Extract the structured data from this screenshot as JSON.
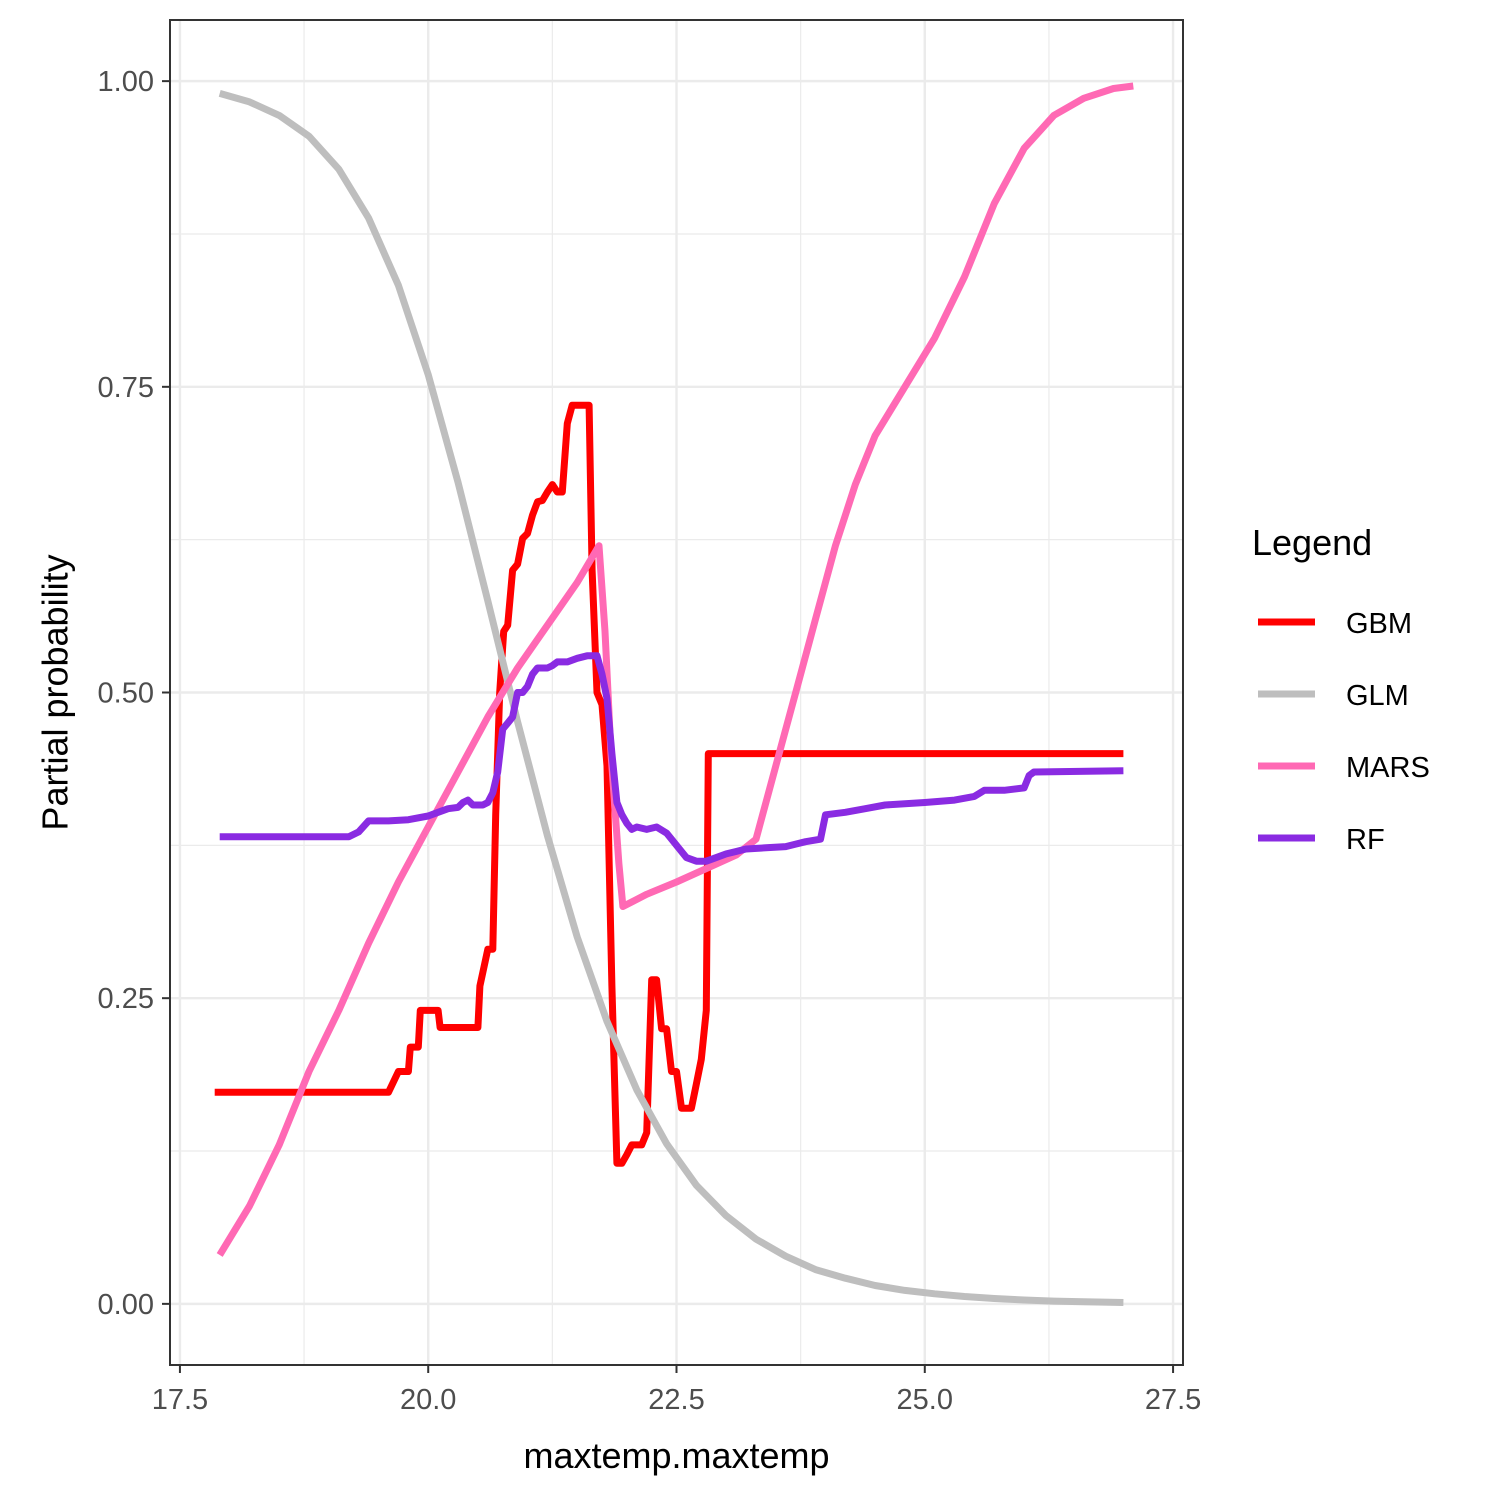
{
  "chart_data": {
    "type": "line",
    "title": "",
    "xlabel": "maxtemp.maxtemp",
    "ylabel": "Partial probability",
    "xlim": [
      17.4,
      27.6
    ],
    "ylim": [
      -0.05,
      1.05
    ],
    "x_ticks": [
      17.5,
      20.0,
      22.5,
      25.0,
      27.5
    ],
    "x_tick_labels": [
      "17.5",
      "20.0",
      "22.5",
      "25.0",
      "27.5"
    ],
    "y_ticks": [
      0.0,
      0.25,
      0.5,
      0.75,
      1.0
    ],
    "y_tick_labels": [
      "0.00",
      "0.25",
      "0.50",
      "0.75",
      "1.00"
    ],
    "grid": true,
    "legend": {
      "title": "Legend",
      "position": "right"
    },
    "series": [
      {
        "name": "GBM",
        "color": "#ff0000",
        "points": [
          [
            17.85,
            0.173
          ],
          [
            19.6,
            0.173
          ],
          [
            19.7,
            0.19
          ],
          [
            19.8,
            0.19
          ],
          [
            19.82,
            0.21
          ],
          [
            19.9,
            0.21
          ],
          [
            19.92,
            0.24
          ],
          [
            20.1,
            0.24
          ],
          [
            20.12,
            0.226
          ],
          [
            20.5,
            0.226
          ],
          [
            20.52,
            0.26
          ],
          [
            20.6,
            0.29
          ],
          [
            20.65,
            0.29
          ],
          [
            20.68,
            0.4
          ],
          [
            20.72,
            0.5
          ],
          [
            20.76,
            0.55
          ],
          [
            20.8,
            0.555
          ],
          [
            20.85,
            0.6
          ],
          [
            20.9,
            0.605
          ],
          [
            20.95,
            0.626
          ],
          [
            21.0,
            0.63
          ],
          [
            21.05,
            0.645
          ],
          [
            21.1,
            0.656
          ],
          [
            21.15,
            0.657
          ],
          [
            21.2,
            0.664
          ],
          [
            21.25,
            0.67
          ],
          [
            21.3,
            0.664
          ],
          [
            21.35,
            0.664
          ],
          [
            21.4,
            0.72
          ],
          [
            21.45,
            0.735
          ],
          [
            21.62,
            0.735
          ],
          [
            21.65,
            0.6
          ],
          [
            21.7,
            0.5
          ],
          [
            21.75,
            0.49
          ],
          [
            21.8,
            0.44
          ],
          [
            21.85,
            0.26
          ],
          [
            21.9,
            0.115
          ],
          [
            21.95,
            0.115
          ],
          [
            22.0,
            0.122
          ],
          [
            22.05,
            0.13
          ],
          [
            22.15,
            0.13
          ],
          [
            22.2,
            0.14
          ],
          [
            22.25,
            0.265
          ],
          [
            22.3,
            0.265
          ],
          [
            22.35,
            0.225
          ],
          [
            22.4,
            0.225
          ],
          [
            22.45,
            0.19
          ],
          [
            22.5,
            0.19
          ],
          [
            22.55,
            0.16
          ],
          [
            22.6,
            0.16
          ],
          [
            22.65,
            0.16
          ],
          [
            22.7,
            0.18
          ],
          [
            22.75,
            0.2
          ],
          [
            22.8,
            0.24
          ],
          [
            22.82,
            0.45
          ],
          [
            27.0,
            0.45
          ]
        ]
      },
      {
        "name": "GLM",
        "color": "#bebebe",
        "points": [
          [
            17.9,
            0.99
          ],
          [
            18.2,
            0.983
          ],
          [
            18.5,
            0.972
          ],
          [
            18.8,
            0.955
          ],
          [
            19.1,
            0.928
          ],
          [
            19.4,
            0.888
          ],
          [
            19.7,
            0.833
          ],
          [
            20.0,
            0.76
          ],
          [
            20.3,
            0.672
          ],
          [
            20.6,
            0.575
          ],
          [
            20.9,
            0.476
          ],
          [
            21.2,
            0.383
          ],
          [
            21.5,
            0.3
          ],
          [
            21.8,
            0.231
          ],
          [
            22.1,
            0.175
          ],
          [
            22.4,
            0.131
          ],
          [
            22.7,
            0.097
          ],
          [
            23.0,
            0.072
          ],
          [
            23.3,
            0.053
          ],
          [
            23.6,
            0.039
          ],
          [
            23.9,
            0.028
          ],
          [
            24.2,
            0.021
          ],
          [
            24.5,
            0.015
          ],
          [
            24.8,
            0.011
          ],
          [
            25.1,
            0.0082
          ],
          [
            25.4,
            0.006
          ],
          [
            25.7,
            0.0044
          ],
          [
            26.0,
            0.0032
          ],
          [
            26.3,
            0.0023
          ],
          [
            26.6,
            0.0017
          ],
          [
            27.0,
            0.0011
          ]
        ]
      },
      {
        "name": "MARS",
        "color": "#ff69b4",
        "points": [
          [
            17.9,
            0.04
          ],
          [
            18.2,
            0.08
          ],
          [
            18.5,
            0.13
          ],
          [
            18.8,
            0.19
          ],
          [
            19.1,
            0.24
          ],
          [
            19.4,
            0.295
          ],
          [
            19.7,
            0.345
          ],
          [
            20.0,
            0.39
          ],
          [
            20.3,
            0.435
          ],
          [
            20.6,
            0.48
          ],
          [
            20.9,
            0.52
          ],
          [
            21.2,
            0.555
          ],
          [
            21.5,
            0.59
          ],
          [
            21.72,
            0.62
          ],
          [
            21.78,
            0.55
          ],
          [
            21.84,
            0.45
          ],
          [
            21.92,
            0.36
          ],
          [
            21.96,
            0.325
          ],
          [
            22.2,
            0.335
          ],
          [
            22.5,
            0.345
          ],
          [
            22.8,
            0.356
          ],
          [
            23.1,
            0.367
          ],
          [
            23.3,
            0.38
          ],
          [
            23.5,
            0.44
          ],
          [
            23.7,
            0.5
          ],
          [
            23.9,
            0.56
          ],
          [
            24.1,
            0.62
          ],
          [
            24.3,
            0.67
          ],
          [
            24.5,
            0.71
          ],
          [
            24.8,
            0.75
          ],
          [
            25.1,
            0.79
          ],
          [
            25.4,
            0.84
          ],
          [
            25.7,
            0.9
          ],
          [
            26.0,
            0.945
          ],
          [
            26.3,
            0.972
          ],
          [
            26.6,
            0.986
          ],
          [
            26.9,
            0.994
          ],
          [
            27.1,
            0.996
          ]
        ]
      },
      {
        "name": "RF",
        "color": "#8a2be2",
        "points": [
          [
            17.9,
            0.382
          ],
          [
            19.2,
            0.382
          ],
          [
            19.3,
            0.386
          ],
          [
            19.4,
            0.395
          ],
          [
            19.6,
            0.395
          ],
          [
            19.8,
            0.396
          ],
          [
            20.0,
            0.399
          ],
          [
            20.1,
            0.402
          ],
          [
            20.2,
            0.405
          ],
          [
            20.3,
            0.406
          ],
          [
            20.35,
            0.41
          ],
          [
            20.4,
            0.412
          ],
          [
            20.45,
            0.408
          ],
          [
            20.5,
            0.408
          ],
          [
            20.55,
            0.408
          ],
          [
            20.6,
            0.41
          ],
          [
            20.65,
            0.418
          ],
          [
            20.7,
            0.435
          ],
          [
            20.75,
            0.47
          ],
          [
            20.8,
            0.475
          ],
          [
            20.85,
            0.48
          ],
          [
            20.9,
            0.5
          ],
          [
            20.95,
            0.5
          ],
          [
            21.0,
            0.505
          ],
          [
            21.05,
            0.515
          ],
          [
            21.1,
            0.52
          ],
          [
            21.2,
            0.52
          ],
          [
            21.25,
            0.522
          ],
          [
            21.3,
            0.525
          ],
          [
            21.4,
            0.525
          ],
          [
            21.5,
            0.528
          ],
          [
            21.6,
            0.53
          ],
          [
            21.7,
            0.53
          ],
          [
            21.75,
            0.515
          ],
          [
            21.8,
            0.495
          ],
          [
            21.85,
            0.45
          ],
          [
            21.9,
            0.41
          ],
          [
            21.95,
            0.4
          ],
          [
            22.0,
            0.393
          ],
          [
            22.05,
            0.388
          ],
          [
            22.1,
            0.39
          ],
          [
            22.2,
            0.388
          ],
          [
            22.3,
            0.39
          ],
          [
            22.4,
            0.385
          ],
          [
            22.5,
            0.375
          ],
          [
            22.6,
            0.365
          ],
          [
            22.7,
            0.362
          ],
          [
            22.8,
            0.362
          ],
          [
            22.9,
            0.365
          ],
          [
            23.0,
            0.368
          ],
          [
            23.1,
            0.37
          ],
          [
            23.2,
            0.372
          ],
          [
            23.4,
            0.373
          ],
          [
            23.6,
            0.374
          ],
          [
            23.7,
            0.376
          ],
          [
            23.8,
            0.378
          ],
          [
            23.95,
            0.38
          ],
          [
            24.0,
            0.4
          ],
          [
            24.2,
            0.402
          ],
          [
            24.4,
            0.405
          ],
          [
            24.6,
            0.408
          ],
          [
            25.0,
            0.41
          ],
          [
            25.3,
            0.412
          ],
          [
            25.5,
            0.415
          ],
          [
            25.6,
            0.42
          ],
          [
            25.8,
            0.42
          ],
          [
            26.0,
            0.422
          ],
          [
            26.05,
            0.432
          ],
          [
            26.1,
            0.435
          ],
          [
            27.0,
            0.436
          ]
        ]
      }
    ]
  }
}
